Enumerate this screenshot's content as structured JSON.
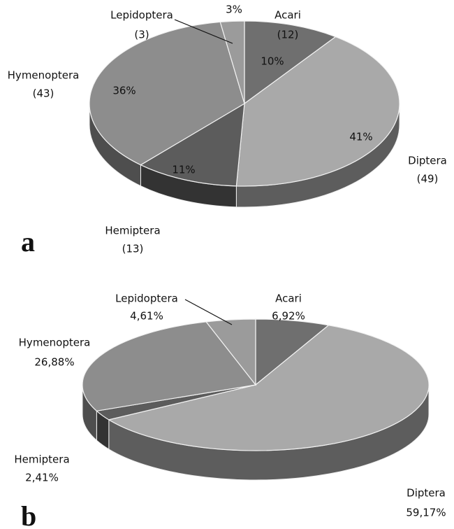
{
  "chart_data": [
    {
      "type": "pie3d",
      "panel": "a",
      "categories": [
        "Acari",
        "Diptera",
        "Hemiptera",
        "Hymenoptera",
        "Lepidoptera"
      ],
      "values": [
        12,
        49,
        13,
        43,
        3
      ],
      "value_labels": [
        "(12)",
        "(49)",
        "(13)",
        "(43)",
        "(3)"
      ],
      "percentages": [
        10,
        41,
        11,
        36,
        3
      ],
      "percentage_labels": [
        "10%",
        "41%",
        "11%",
        "36%",
        "3%"
      ],
      "colors": [
        "#6f6f6f",
        "#a9a9a9",
        "#5c5c5c",
        "#8d8d8d",
        "#9b9b9b"
      ]
    },
    {
      "type": "pie3d",
      "panel": "b",
      "categories": [
        "Acari",
        "Diptera",
        "Hemiptera",
        "Hymenoptera",
        "Lepidoptera"
      ],
      "values": [
        6.92,
        59.17,
        2.41,
        26.88,
        4.61
      ],
      "value_labels": [
        "6,92%",
        "59,17%",
        "2,41%",
        "26,88%",
        "4,61%"
      ],
      "colors": [
        "#6f6f6f",
        "#a9a9a9",
        "#5c5c5c",
        "#8d8d8d",
        "#9b9b9b"
      ]
    }
  ]
}
